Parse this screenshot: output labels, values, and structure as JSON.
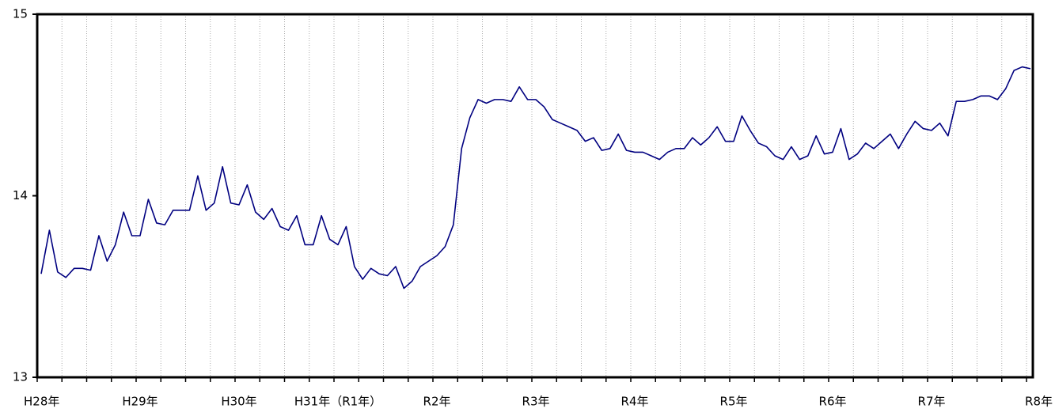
{
  "chart_data": {
    "type": "line",
    "categories": [
      "H28年",
      null,
      null,
      null,
      null,
      null,
      null,
      null,
      null,
      null,
      null,
      null,
      "H29年",
      null,
      null,
      null,
      null,
      null,
      null,
      null,
      null,
      null,
      null,
      null,
      "H30年",
      null,
      null,
      null,
      null,
      null,
      null,
      null,
      null,
      null,
      null,
      null,
      "H31年（R1年）",
      null,
      null,
      null,
      null,
      null,
      null,
      null,
      null,
      null,
      null,
      null,
      "R2年",
      null,
      null,
      null,
      null,
      null,
      null,
      null,
      null,
      null,
      null,
      null,
      "R3年",
      null,
      null,
      null,
      null,
      null,
      null,
      null,
      null,
      null,
      null,
      null,
      "R4年",
      null,
      null,
      null,
      null,
      null,
      null,
      null,
      null,
      null,
      null,
      null,
      "R5年",
      null,
      null,
      null,
      null,
      null,
      null,
      null,
      null,
      null,
      null,
      null,
      "R6年",
      null,
      null,
      null,
      null,
      null,
      null,
      null,
      null,
      null,
      null,
      null,
      "R7年",
      null,
      null,
      null,
      null,
      null,
      null,
      null,
      null,
      null,
      null,
      null,
      "R8年"
    ],
    "values": [
      13.57,
      13.81,
      13.58,
      13.55,
      13.6,
      13.6,
      13.59,
      13.78,
      13.64,
      13.73,
      13.91,
      13.78,
      13.78,
      13.98,
      13.85,
      13.84,
      13.92,
      13.92,
      13.92,
      14.11,
      13.92,
      13.96,
      14.16,
      13.96,
      13.95,
      14.06,
      13.91,
      13.87,
      13.93,
      13.83,
      13.81,
      13.89,
      13.73,
      13.73,
      13.89,
      13.76,
      13.73,
      13.83,
      13.61,
      13.54,
      13.6,
      13.57,
      13.56,
      13.61,
      13.49,
      13.53,
      13.61,
      13.64,
      13.67,
      13.72,
      13.84,
      14.26,
      14.43,
      14.53,
      14.51,
      14.53,
      14.53,
      14.52,
      14.6,
      14.53,
      14.53,
      14.49,
      14.42,
      14.4,
      14.38,
      14.36,
      14.3,
      14.32,
      14.25,
      14.26,
      14.34,
      14.25,
      14.24,
      14.24,
      14.22,
      14.2,
      14.24,
      14.26,
      14.26,
      14.32,
      14.28,
      14.32,
      14.38,
      14.3,
      14.3,
      14.44,
      14.36,
      14.29,
      14.27,
      14.22,
      14.2,
      14.27,
      14.2,
      14.22,
      14.33,
      14.23,
      14.24,
      14.37,
      14.2,
      14.23,
      14.29,
      14.26,
      14.3,
      14.34,
      14.26,
      14.34,
      14.41,
      14.37,
      14.36,
      14.4,
      14.33,
      14.52,
      14.52,
      14.53,
      14.55,
      14.55,
      14.53,
      14.59,
      14.69,
      14.71,
      14.7
    ],
    "color": "#000080",
    "ylim": [
      13,
      15
    ],
    "yticks": [
      13,
      14,
      15
    ],
    "grid": true
  }
}
